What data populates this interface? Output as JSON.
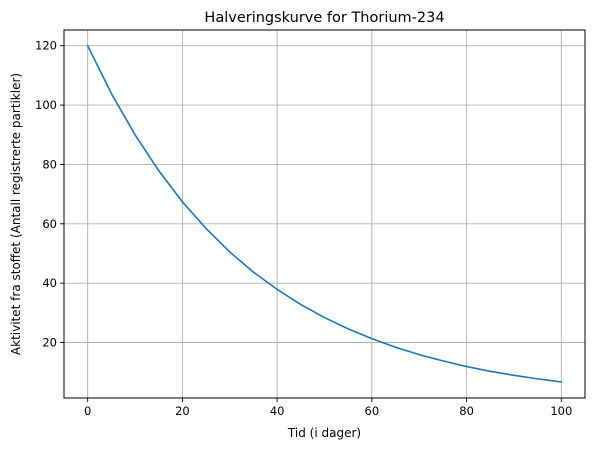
{
  "chart_data": {
    "type": "line",
    "title": "Halveringskurve for Thorium-234",
    "xlabel": "Tid (i dager)",
    "ylabel": "Aktivitet fra stoffet (Antall registrerte partikler)",
    "xlim": [
      -5,
      105
    ],
    "ylim": [
      1.3,
      125.3
    ],
    "xticks": [
      0,
      20,
      40,
      60,
      80,
      100
    ],
    "yticks": [
      20,
      40,
      60,
      80,
      100,
      120
    ],
    "grid": true,
    "series": [
      {
        "color": "#1f77b4",
        "x": [
          0,
          5,
          10,
          15,
          20,
          25,
          30,
          35,
          40,
          45,
          50,
          55,
          60,
          65,
          70,
          75,
          80,
          85,
          90,
          95,
          100
        ],
        "values": [
          120,
          103.9,
          90.0,
          77.9,
          67.4,
          58.4,
          50.5,
          43.7,
          37.9,
          32.8,
          28.4,
          24.6,
          21.3,
          18.4,
          15.9,
          13.8,
          11.9,
          10.3,
          8.95,
          7.75,
          6.71
        ]
      }
    ]
  }
}
